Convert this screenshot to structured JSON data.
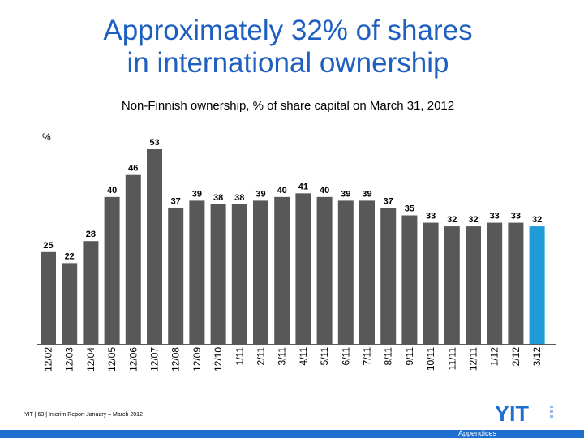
{
  "header": {
    "title_line1": "Approximately 32% of shares",
    "title_line2": "in international ownership"
  },
  "colors": {
    "title": "#1f5fbf",
    "bar": "#58585a",
    "bar_highlight": "#1f9bd8",
    "bottom_bar": "#1f6fd0"
  },
  "chart_data": {
    "type": "bar",
    "title": "Non-Finnish ownership, % of share capital on March 31, 2012",
    "ylabel": "%",
    "xlabel": "",
    "categories": [
      "12/02",
      "12/03",
      "12/04",
      "12/05",
      "12/06",
      "12/07",
      "12/08",
      "12/09",
      "12/10",
      "1/11",
      "2/11",
      "3/11",
      "4/11",
      "5/11",
      "6/11",
      "7/11",
      "8/11",
      "9/11",
      "10/11",
      "11/11",
      "12/11",
      "1/12",
      "2/12",
      "3/12"
    ],
    "values": [
      25,
      22,
      28,
      40,
      46,
      53,
      37,
      39,
      38,
      38,
      39,
      40,
      41,
      40,
      39,
      39,
      37,
      35,
      33,
      32,
      32,
      33,
      33,
      32
    ],
    "highlight_index": 23,
    "ylim": [
      0,
      55
    ],
    "grid": false,
    "legend": "none"
  },
  "footer": {
    "text": "YIT  |  63  |  Interim Report January – March 2012",
    "logo_text": "YIT",
    "section_label": "Appendices"
  }
}
